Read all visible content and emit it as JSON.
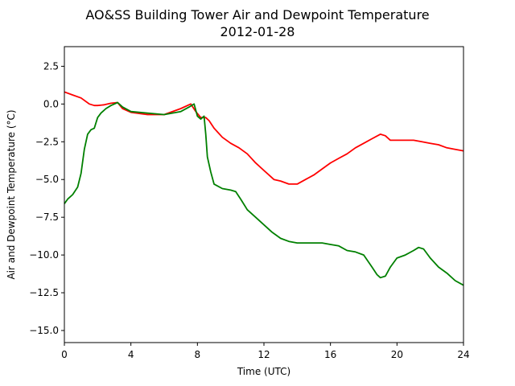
{
  "chart_data": {
    "type": "line",
    "title": "AO&SS Building Tower Air and Dewpoint Temperature",
    "subtitle": "2012-01-28",
    "xlabel": "Time (UTC)",
    "ylabel": "Air and Dewpoint Temperature (°C)",
    "xlim": [
      0,
      24
    ],
    "ylim": [
      -15.8,
      3.8
    ],
    "xticks": [
      0,
      4,
      8,
      12,
      16,
      20,
      24
    ],
    "xtick_labels": [
      "0",
      "4",
      "8",
      "12",
      "16",
      "20",
      "24"
    ],
    "yticks": [
      2.5,
      0.0,
      -2.5,
      -5.0,
      -7.5,
      -10.0,
      -12.5,
      -15.0
    ],
    "ytick_labels": [
      "2.5",
      "0.0",
      "−2.5",
      "−5.0",
      "−7.5",
      "−10.0",
      "−12.5",
      "−15.0"
    ],
    "grid": false,
    "series": [
      {
        "color": "#ff0000",
        "x": [
          0,
          0.5,
          1.0,
          1.5,
          1.8,
          2.0,
          2.4,
          2.8,
          3.2,
          3.5,
          4.0,
          5.0,
          6.0,
          7.0,
          7.6,
          7.9,
          8.2,
          8.5,
          8.7,
          9.0,
          9.5,
          10.0,
          10.5,
          11.0,
          11.5,
          12.0,
          12.3,
          12.6,
          13.0,
          13.5,
          14.0,
          14.5,
          15.0,
          15.5,
          16.0,
          16.5,
          17.0,
          17.5,
          18.0,
          18.5,
          19.0,
          19.3,
          19.6,
          20.0,
          20.5,
          21.0,
          21.5,
          22.0,
          22.5,
          23.0,
          23.5,
          24.0
        ],
        "y": [
          0.8,
          0.6,
          0.4,
          0.0,
          -0.1,
          -0.1,
          -0.05,
          0.05,
          0.1,
          -0.3,
          -0.55,
          -0.7,
          -0.7,
          -0.3,
          0.0,
          -0.5,
          -0.9,
          -0.9,
          -1.1,
          -1.6,
          -2.2,
          -2.6,
          -2.9,
          -3.3,
          -3.9,
          -4.4,
          -4.7,
          -5.0,
          -5.1,
          -5.3,
          -5.3,
          -5.0,
          -4.7,
          -4.3,
          -3.9,
          -3.6,
          -3.3,
          -2.9,
          -2.6,
          -2.3,
          -2.0,
          -2.1,
          -2.4,
          -2.4,
          -2.4,
          -2.4,
          -2.5,
          -2.6,
          -2.7,
          -2.9,
          -3.0,
          -3.1
        ]
      },
      {
        "color": "#008000",
        "x": [
          0,
          0.2,
          0.5,
          0.8,
          1.0,
          1.2,
          1.4,
          1.6,
          1.8,
          2.0,
          2.2,
          2.5,
          2.8,
          3.2,
          3.5,
          4.0,
          5.0,
          6.0,
          7.0,
          7.5,
          7.8,
          8.0,
          8.2,
          8.4,
          8.5,
          8.6,
          8.8,
          9.0,
          9.5,
          10.0,
          10.3,
          10.6,
          11.0,
          11.5,
          12.0,
          12.5,
          13.0,
          13.5,
          14.0,
          14.5,
          15.0,
          15.5,
          16.0,
          16.5,
          17.0,
          17.5,
          18.0,
          18.5,
          18.8,
          19.0,
          19.3,
          19.6,
          20.0,
          20.5,
          21.0,
          21.3,
          21.6,
          22.0,
          22.5,
          23.0,
          23.5,
          24.0
        ],
        "y": [
          -6.6,
          -6.3,
          -6.0,
          -5.5,
          -4.6,
          -3.0,
          -2.0,
          -1.7,
          -1.6,
          -0.9,
          -0.6,
          -0.3,
          -0.1,
          0.1,
          -0.2,
          -0.5,
          -0.6,
          -0.7,
          -0.5,
          -0.2,
          0.0,
          -0.8,
          -1.0,
          -0.8,
          -2.0,
          -3.5,
          -4.5,
          -5.3,
          -5.6,
          -5.7,
          -5.8,
          -6.3,
          -7.0,
          -7.5,
          -8.0,
          -8.5,
          -8.9,
          -9.1,
          -9.2,
          -9.2,
          -9.2,
          -9.2,
          -9.3,
          -9.4,
          -9.7,
          -9.8,
          -10.0,
          -10.8,
          -11.3,
          -11.5,
          -11.4,
          -10.8,
          -10.2,
          -10.0,
          -9.7,
          -9.5,
          -9.6,
          -10.2,
          -10.8,
          -11.2,
          -11.7,
          -12.0
        ]
      }
    ]
  }
}
